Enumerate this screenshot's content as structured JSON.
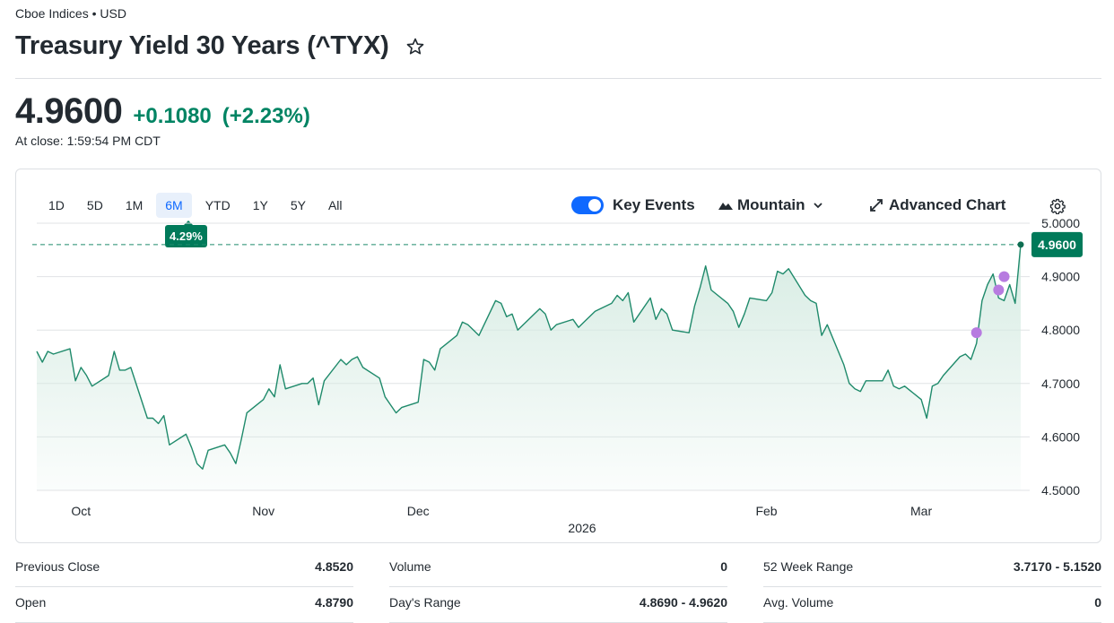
{
  "header": {
    "exchange": "Cboe Indices • USD",
    "title": "Treasury Yield 30 Years (^TYX)"
  },
  "quote": {
    "price": "4.9600",
    "change": "+0.1080",
    "change_pct": "(+2.23%)",
    "close_time": "At close: 1:59:54 PM CDT"
  },
  "chart": {
    "ranges": [
      "1D",
      "5D",
      "1M",
      "6M",
      "YTD",
      "1Y",
      "5Y",
      "All"
    ],
    "active_range": "6M",
    "range_change_badge": "4.29%",
    "key_events_label": "Key Events",
    "key_events_on": true,
    "chart_type_label": "Mountain",
    "advanced_label": "Advanced Chart",
    "y_ticks": [
      "5.0000",
      "4.9000",
      "4.8000",
      "4.7000",
      "4.6000",
      "4.5000"
    ],
    "x_ticks": [
      "Oct",
      "Nov",
      "Dec",
      "Feb",
      "Mar"
    ],
    "year_label": "2026",
    "current_label": "4.9600",
    "colors": {
      "line": "#1f8a6b",
      "area_top": "#d5ebe2",
      "badge": "#007a5a",
      "event": "#b77be0"
    }
  },
  "chart_data": {
    "type": "area",
    "y_range": [
      4.5,
      5.0
    ],
    "grid": true,
    "reference_line": 4.96,
    "x_range": [
      "2025-09-23",
      "2026-03-19"
    ],
    "series": [
      {
        "values": [
          [
            "2025-09-23",
            4.76
          ],
          [
            "2025-09-24",
            4.74
          ],
          [
            "2025-09-25",
            4.76
          ],
          [
            "2025-09-26",
            4.755
          ],
          [
            "2025-09-29",
            4.765
          ],
          [
            "2025-09-30",
            4.705
          ],
          [
            "2025-10-01",
            4.73
          ],
          [
            "2025-10-02",
            4.715
          ],
          [
            "2025-10-03",
            4.695
          ],
          [
            "2025-10-06",
            4.715
          ],
          [
            "2025-10-07",
            4.76
          ],
          [
            "2025-10-08",
            4.725
          ],
          [
            "2025-10-09",
            4.725
          ],
          [
            "2025-10-10",
            4.73
          ],
          [
            "2025-10-13",
            4.635
          ],
          [
            "2025-10-14",
            4.635
          ],
          [
            "2025-10-15",
            4.625
          ],
          [
            "2025-10-16",
            4.64
          ],
          [
            "2025-10-17",
            4.585
          ],
          [
            "2025-10-20",
            4.605
          ],
          [
            "2025-10-21",
            4.58
          ],
          [
            "2025-10-22",
            4.55
          ],
          [
            "2025-10-23",
            4.54
          ],
          [
            "2025-10-24",
            4.575
          ],
          [
            "2025-10-27",
            4.585
          ],
          [
            "2025-10-28",
            4.57
          ],
          [
            "2025-10-29",
            4.55
          ],
          [
            "2025-10-30",
            4.595
          ],
          [
            "2025-10-31",
            4.645
          ],
          [
            "2025-11-03",
            4.67
          ],
          [
            "2025-11-04",
            4.69
          ],
          [
            "2025-11-05",
            4.675
          ],
          [
            "2025-11-06",
            4.735
          ],
          [
            "2025-11-07",
            4.69
          ],
          [
            "2025-11-10",
            4.7
          ],
          [
            "2025-11-11",
            4.7
          ],
          [
            "2025-11-12",
            4.71
          ],
          [
            "2025-11-13",
            4.66
          ],
          [
            "2025-11-14",
            4.705
          ],
          [
            "2025-11-17",
            4.745
          ],
          [
            "2025-11-18",
            4.735
          ],
          [
            "2025-11-19",
            4.745
          ],
          [
            "2025-11-20",
            4.75
          ],
          [
            "2025-11-21",
            4.73
          ],
          [
            "2025-11-24",
            4.71
          ],
          [
            "2025-11-25",
            4.675
          ],
          [
            "2025-11-26",
            4.66
          ],
          [
            "2025-11-27",
            4.645
          ],
          [
            "2025-11-28",
            4.655
          ],
          [
            "2025-12-01",
            4.665
          ],
          [
            "2025-12-02",
            4.745
          ],
          [
            "2025-12-03",
            4.74
          ],
          [
            "2025-12-04",
            4.725
          ],
          [
            "2025-12-05",
            4.765
          ],
          [
            "2025-12-08",
            4.79
          ],
          [
            "2025-12-09",
            4.815
          ],
          [
            "2025-12-10",
            4.81
          ],
          [
            "2025-12-11",
            4.8
          ],
          [
            "2025-12-12",
            4.79
          ],
          [
            "2025-12-15",
            4.855
          ],
          [
            "2025-12-16",
            4.85
          ],
          [
            "2025-12-17",
            4.825
          ],
          [
            "2025-12-18",
            4.83
          ],
          [
            "2025-12-19",
            4.8
          ],
          [
            "2025-12-22",
            4.83
          ],
          [
            "2025-12-23",
            4.84
          ],
          [
            "2025-12-24",
            4.83
          ],
          [
            "2025-12-25",
            4.8
          ],
          [
            "2025-12-26",
            4.81
          ],
          [
            "2025-12-29",
            4.82
          ],
          [
            "2025-12-30",
            4.805
          ],
          [
            "2025-12-31",
            4.815
          ],
          [
            "2026-01-02",
            4.835
          ],
          [
            "2026-01-05",
            4.85
          ],
          [
            "2026-01-06",
            4.865
          ],
          [
            "2026-01-07",
            4.855
          ],
          [
            "2026-01-08",
            4.87
          ],
          [
            "2026-01-09",
            4.815
          ],
          [
            "2026-01-12",
            4.86
          ],
          [
            "2026-01-13",
            4.82
          ],
          [
            "2026-01-14",
            4.84
          ],
          [
            "2026-01-15",
            4.83
          ],
          [
            "2026-01-16",
            4.8
          ],
          [
            "2026-01-19",
            4.795
          ],
          [
            "2026-01-20",
            4.845
          ],
          [
            "2026-01-21",
            4.88
          ],
          [
            "2026-01-22",
            4.92
          ],
          [
            "2026-01-23",
            4.875
          ],
          [
            "2026-01-26",
            4.85
          ],
          [
            "2026-01-27",
            4.835
          ],
          [
            "2026-01-28",
            4.805
          ],
          [
            "2026-01-29",
            4.83
          ],
          [
            "2026-01-30",
            4.86
          ],
          [
            "2026-02-02",
            4.855
          ],
          [
            "2026-02-03",
            4.87
          ],
          [
            "2026-02-04",
            4.91
          ],
          [
            "2026-02-05",
            4.905
          ],
          [
            "2026-02-06",
            4.915
          ],
          [
            "2026-02-09",
            4.865
          ],
          [
            "2026-02-10",
            4.855
          ],
          [
            "2026-02-11",
            4.85
          ],
          [
            "2026-02-12",
            4.79
          ],
          [
            "2026-02-13",
            4.81
          ],
          [
            "2026-02-16",
            4.735
          ],
          [
            "2026-02-17",
            4.7
          ],
          [
            "2026-02-18",
            4.69
          ],
          [
            "2026-02-19",
            4.685
          ],
          [
            "2026-02-20",
            4.705
          ],
          [
            "2026-02-23",
            4.705
          ],
          [
            "2026-02-24",
            4.725
          ],
          [
            "2026-02-25",
            4.695
          ],
          [
            "2026-02-26",
            4.69
          ],
          [
            "2026-02-27",
            4.695
          ],
          [
            "2026-03-02",
            4.67
          ],
          [
            "2026-03-03",
            4.635
          ],
          [
            "2026-03-04",
            4.695
          ],
          [
            "2026-03-05",
            4.7
          ],
          [
            "2026-03-06",
            4.715
          ],
          [
            "2026-03-09",
            4.75
          ],
          [
            "2026-03-10",
            4.755
          ],
          [
            "2026-03-11",
            4.745
          ],
          [
            "2026-03-12",
            4.775
          ],
          [
            "2026-03-13",
            4.855
          ],
          [
            "2026-03-14",
            4.885
          ],
          [
            "2026-03-15",
            4.905
          ],
          [
            "2026-03-16",
            4.86
          ],
          [
            "2026-03-17",
            4.855
          ],
          [
            "2026-03-18",
            4.885
          ],
          [
            "2026-03-19",
            4.85
          ],
          [
            "2026-03-20",
            4.96
          ]
        ]
      }
    ],
    "events": [
      [
        "2026-03-12",
        4.795
      ],
      [
        "2026-03-16",
        4.875
      ],
      [
        "2026-03-17",
        4.9
      ]
    ]
  },
  "stats": [
    {
      "label": "Previous Close",
      "value": "4.8520"
    },
    {
      "label": "Volume",
      "value": "0"
    },
    {
      "label": "52 Week Range",
      "value": "3.7170 - 5.1520"
    },
    {
      "label": "Open",
      "value": "4.8790"
    },
    {
      "label": "Day's Range",
      "value": "4.8690 - 4.9620"
    },
    {
      "label": "Avg. Volume",
      "value": "0"
    }
  ]
}
